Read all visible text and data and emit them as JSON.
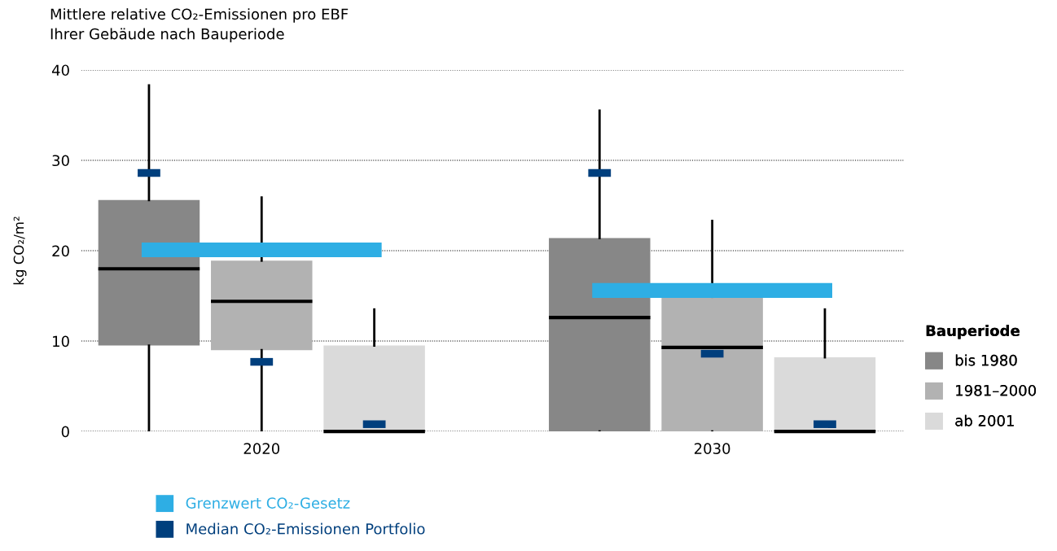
{
  "chart_data": {
    "type": "box",
    "title": "Mittlere relative CO₂-Emissionen pro EBF\nIhrer Gebäude nach Bauperiode",
    "ylabel": "kg CO₂/m²",
    "categories": [
      null,
      "2020",
      null,
      null,
      null,
      "2030",
      null
    ],
    "series": [
      {
        "name": "bis 1980",
        "color": "#878787",
        "boxes": [
          {
            "low": 0,
            "q1": 9.5,
            "median": 18.0,
            "q3": 25.6,
            "high": 38.3
          },
          null,
          null,
          null,
          {
            "low": 0,
            "q1": 0,
            "median": 12.6,
            "q3": 21.4,
            "high": 35.5
          },
          null,
          null
        ]
      },
      {
        "name": "1981–2000",
        "color": "#b2b2b2",
        "boxes": [
          null,
          {
            "low": 0,
            "q1": 9.0,
            "median": 14.4,
            "q3": 18.9,
            "high": 25.9
          },
          null,
          null,
          null,
          {
            "low": 0,
            "q1": 0,
            "median": 9.3,
            "q3": 14.9,
            "high": 23.3
          },
          null
        ]
      },
      {
        "name": "ab 2001",
        "color": "#dadada",
        "boxes": [
          null,
          null,
          {
            "low": 0,
            "q1": 0,
            "median": 0,
            "q3": 9.5,
            "high": 13.5
          },
          null,
          null,
          null,
          {
            "low": 0,
            "q1": 0,
            "median": 0,
            "q3": 8.2,
            "high": 13.5
          }
        ]
      },
      {
        "name": "Grenzwert CO₂-Gesetz",
        "type": "line",
        "color": "#2eaee4",
        "values": [
          20.1,
          20.1,
          20.1,
          null,
          15.6,
          15.6,
          15.6
        ]
      },
      {
        "name": "Median CO₂-Emissionen Portfolio",
        "type": "scatter",
        "color": "#003f7d",
        "marker": "square",
        "values": [
          28.6,
          7.7,
          0.8,
          null,
          28.6,
          8.6,
          0.8
        ]
      }
    ],
    "legend_title": "Bauperiode",
    "legend": "right",
    "ylim": [
      0,
      40
    ],
    "yticks": [
      0,
      10,
      20,
      30,
      40
    ],
    "grid": "y"
  }
}
